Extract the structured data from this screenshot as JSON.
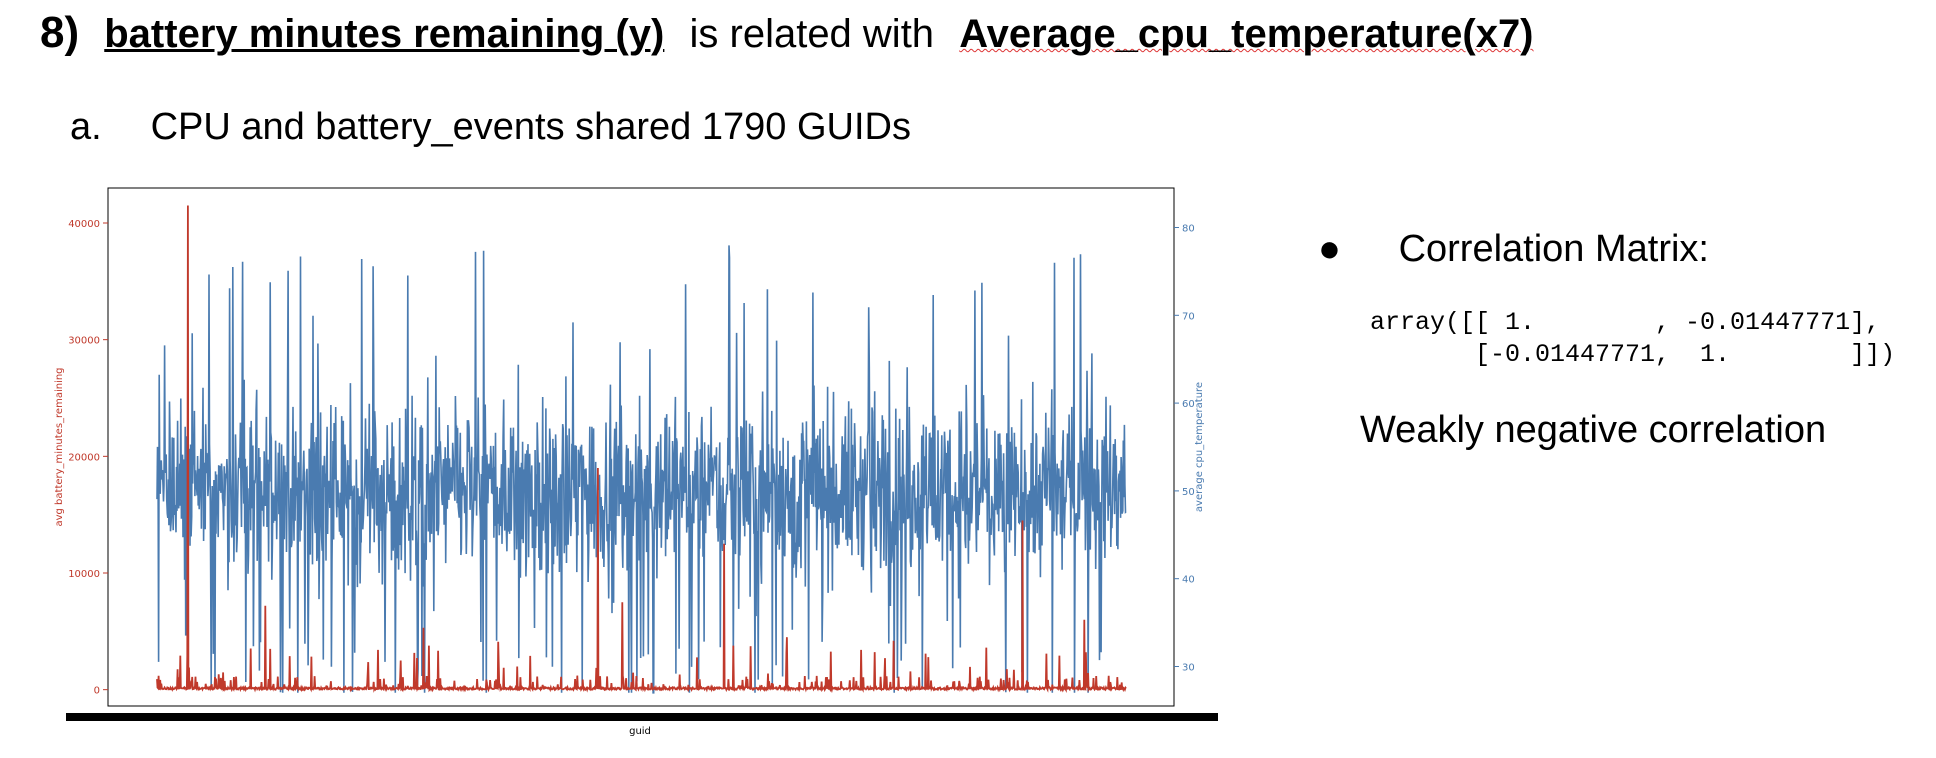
{
  "heading": {
    "number": "8)",
    "part1": "battery minutes remaining (y)",
    "connector": "is related with",
    "part2": "Average_cpu_temperature(x7)"
  },
  "subheading": {
    "marker": "a.",
    "text": "CPU and battery_events shared 1790 GUIDs"
  },
  "right_panel": {
    "bullet": "●",
    "label": "Correlation Matrix:",
    "matrix_lines": [
      "array([[ 1.        , -0.01447771],",
      "       [-0.01447771,  1.        ]])"
    ],
    "conclusion": "Weakly negative correlation"
  },
  "colors": {
    "battery_series": "#c0392b",
    "cpu_series": "#4a7bb0",
    "left_axis": "#c0392b",
    "right_axis": "#4a7bb0"
  },
  "chart_data": {
    "type": "line",
    "xlabel": "guid",
    "ylabel_left": "avg battery_minutes_remaining",
    "ylabel_right": "average cpu_temperature",
    "ylim_left": [
      -1400,
      43000
    ],
    "ylim_right": [
      25.5,
      84.5
    ],
    "yticks_left": [
      0,
      10000,
      20000,
      30000,
      40000
    ],
    "yticks_right": [
      30,
      40,
      50,
      60,
      70,
      80
    ],
    "n_points": 1790,
    "battery_peaks": [
      [
        0.032,
        41500
      ],
      [
        0.112,
        7200
      ],
      [
        0.275,
        5300
      ],
      [
        0.352,
        4100
      ],
      [
        0.455,
        19000
      ],
      [
        0.48,
        7500
      ],
      [
        0.585,
        12500
      ],
      [
        0.65,
        4500
      ],
      [
        0.76,
        4200
      ],
      [
        0.893,
        14500
      ],
      [
        0.957,
        6000
      ]
    ],
    "cpu_summary": {
      "mean": 50,
      "min": 27,
      "max": 83
    },
    "series": [
      {
        "axis": "left",
        "color": "#c0392b"
      },
      {
        "axis": "right",
        "color": "#4a7bb0"
      }
    ]
  }
}
